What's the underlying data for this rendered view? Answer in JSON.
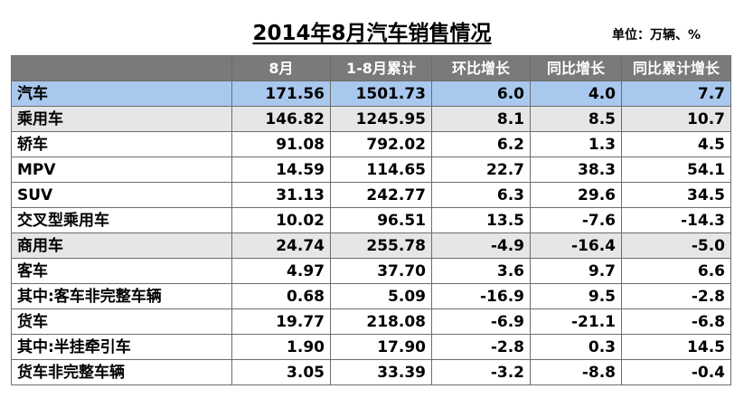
{
  "title": "2014年8月汽车销售情况",
  "unit": "单位：万辆、%",
  "colors": {
    "header_bg": "#7a7a7a",
    "main_row_bg": "#a9c8ee",
    "sub_row_bg": "#e6e6e6"
  },
  "table": {
    "headers": [
      "",
      "8月",
      "1-8月累计",
      "环比增长",
      "同比增长",
      "同比累计增长"
    ],
    "rows": [
      {
        "label": "汽车",
        "v": [
          "171.56",
          "1501.73",
          "6.0",
          "4.0",
          "7.7"
        ]
      },
      {
        "label": "乘用车",
        "v": [
          "146.82",
          "1245.95",
          "8.1",
          "8.5",
          "10.7"
        ]
      },
      {
        "label": "轿车",
        "v": [
          "91.08",
          "792.02",
          "6.2",
          "1.3",
          "4.5"
        ]
      },
      {
        "label": "MPV",
        "v": [
          "14.59",
          "114.65",
          "22.7",
          "38.3",
          "54.1"
        ]
      },
      {
        "label": "SUV",
        "v": [
          "31.13",
          "242.77",
          "6.3",
          "29.6",
          "34.5"
        ]
      },
      {
        "label": "交叉型乘用车",
        "v": [
          "10.02",
          "96.51",
          "13.5",
          "-7.6",
          "-14.3"
        ]
      },
      {
        "label": "商用车",
        "v": [
          "24.74",
          "255.78",
          "-4.9",
          "-16.4",
          "-5.0"
        ]
      },
      {
        "label": "客车",
        "v": [
          "4.97",
          "37.70",
          "3.6",
          "9.7",
          "6.6"
        ]
      },
      {
        "label": "其中:客车非完整车辆",
        "v": [
          "0.68",
          "5.09",
          "-16.9",
          "9.5",
          "-2.8"
        ]
      },
      {
        "label": "货车",
        "v": [
          "19.77",
          "218.08",
          "-6.9",
          "-21.1",
          "-6.8"
        ]
      },
      {
        "label": "其中:半挂牵引车",
        "v": [
          "1.90",
          "17.90",
          "-2.8",
          "0.3",
          "14.5"
        ]
      },
      {
        "label": "货车非完整车辆",
        "v": [
          "3.05",
          "33.39",
          "-3.2",
          "-8.8",
          "-0.4"
        ]
      }
    ]
  }
}
